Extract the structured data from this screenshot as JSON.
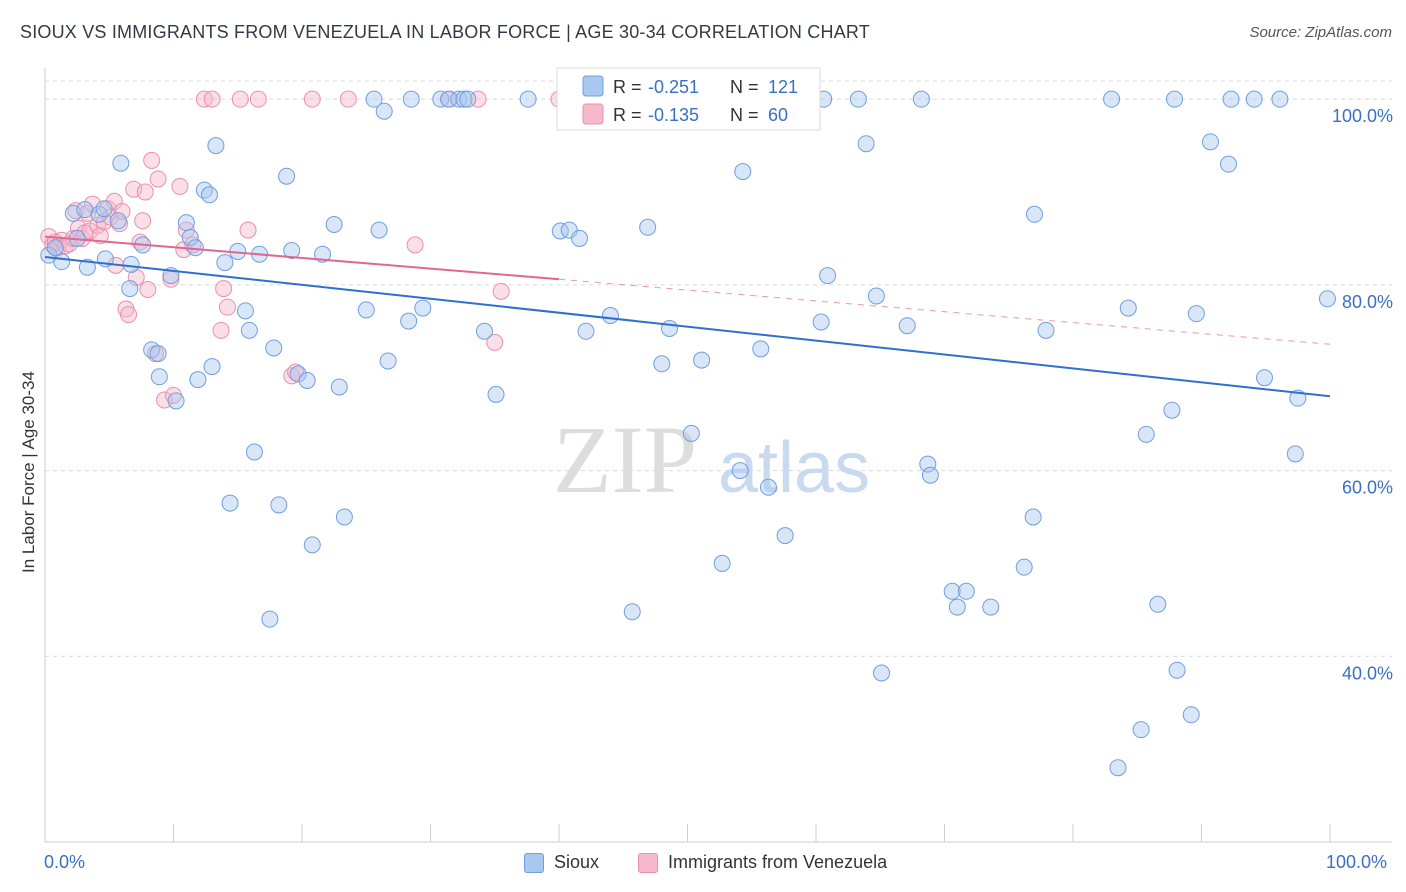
{
  "title": "SIOUX VS IMMIGRANTS FROM VENEZUELA IN LABOR FORCE | AGE 30-34 CORRELATION CHART",
  "source": "Source: ZipAtlas.com",
  "watermark": {
    "zip": "ZIP",
    "atlas": "atlas"
  },
  "colors": {
    "sioux_fill": "#a9c8f0",
    "sioux_stroke": "#6f9fe0",
    "sioux_line": "#2f6fcf",
    "venezuela_fill": "#f6b9cb",
    "venezuela_stroke": "#ec8fab",
    "venezuela_line": "#e06791",
    "tick_text": "#3a6fc4",
    "grid": "#d9d9d9"
  },
  "legend": {
    "rows": [
      {
        "r_label": "R =",
        "r_value": "-0.251",
        "n_label": "N =",
        "n_value": "121"
      },
      {
        "r_label": "R =",
        "r_value": "-0.135",
        "n_label": "N =",
        "n_value": "60"
      }
    ]
  },
  "bottom_legend": {
    "sioux": "Sioux",
    "venezuela": "Immigrants from Venezuela"
  },
  "chart_data": {
    "type": "scatter",
    "title": "SIOUX VS IMMIGRANTS FROM VENEZUELA IN LABOR FORCE | AGE 30-34 CORRELATION CHART",
    "xlabel": "",
    "ylabel": "In Labor Force | Age 30-34",
    "xlim": [
      0,
      100
    ],
    "ylim": [
      20,
      104
    ],
    "x_tick_labels": [
      "0.0%",
      "100.0%"
    ],
    "y_ticks": [
      40,
      60,
      80,
      100
    ],
    "y_tick_labels": [
      "40.0%",
      "60.0%",
      "80.0%",
      "100.0%"
    ],
    "grid": true,
    "legend_position": "top-center",
    "series": [
      {
        "name": "Sioux",
        "r": -0.251,
        "n": 121,
        "trend": {
          "x": [
            0,
            100
          ],
          "y": [
            83.0,
            68.0
          ]
        },
        "points": [
          [
            0.3,
            83.2
          ],
          [
            1.3,
            82.5
          ],
          [
            2.2,
            87.7
          ],
          [
            3.3,
            81.9
          ],
          [
            4.7,
            82.8
          ],
          [
            6.7,
            82.2
          ],
          [
            3.1,
            88.1
          ],
          [
            4.2,
            87.6
          ],
          [
            4.6,
            88.2
          ],
          [
            5.7,
            86.9
          ],
          [
            5.9,
            93.1
          ],
          [
            7.6,
            84.3
          ],
          [
            6.6,
            79.6
          ],
          [
            8.3,
            73.0
          ],
          [
            8.8,
            72.6
          ],
          [
            8.9,
            70.1
          ],
          [
            9.8,
            81.0
          ],
          [
            10.2,
            67.5
          ],
          [
            11.0,
            86.7
          ],
          [
            11.3,
            85.1
          ],
          [
            11.9,
            69.8
          ],
          [
            12.4,
            90.2
          ],
          [
            12.8,
            89.7
          ],
          [
            13.0,
            71.2
          ],
          [
            13.3,
            95.0
          ],
          [
            14.0,
            82.4
          ],
          [
            14.4,
            56.5
          ],
          [
            15.0,
            83.6
          ],
          [
            15.6,
            77.2
          ],
          [
            15.9,
            75.1
          ],
          [
            16.3,
            62.0
          ],
          [
            16.7,
            83.3
          ],
          [
            17.5,
            44.0
          ],
          [
            17.8,
            73.2
          ],
          [
            18.2,
            56.3
          ],
          [
            18.8,
            91.7
          ],
          [
            19.2,
            83.7
          ],
          [
            19.7,
            70.4
          ],
          [
            20.4,
            69.7
          ],
          [
            20.8,
            52.0
          ],
          [
            21.6,
            83.3
          ],
          [
            22.5,
            86.5
          ],
          [
            22.9,
            69.0
          ],
          [
            23.3,
            55.0
          ],
          [
            25.0,
            77.3
          ],
          [
            25.6,
            100.0
          ],
          [
            26.0,
            85.9
          ],
          [
            26.4,
            98.7
          ],
          [
            26.7,
            71.8
          ],
          [
            28.3,
            76.1
          ],
          [
            28.5,
            100.0
          ],
          [
            29.4,
            77.5
          ],
          [
            30.8,
            100.0
          ],
          [
            31.4,
            100.0
          ],
          [
            32.2,
            100.0
          ],
          [
            32.6,
            100.0
          ],
          [
            32.9,
            100.0
          ],
          [
            34.2,
            75.0
          ],
          [
            35.1,
            68.2
          ],
          [
            37.6,
            100.0
          ],
          [
            40.1,
            85.8
          ],
          [
            40.8,
            85.9
          ],
          [
            41.6,
            85.0
          ],
          [
            42.1,
            75.0
          ],
          [
            44.0,
            76.7
          ],
          [
            45.7,
            44.8
          ],
          [
            46.9,
            86.2
          ],
          [
            48.0,
            71.5
          ],
          [
            48.6,
            75.3
          ],
          [
            49.4,
            100.0
          ],
          [
            50.3,
            64.0
          ],
          [
            51.1,
            71.9
          ],
          [
            52.7,
            50.0
          ],
          [
            54.1,
            60.0
          ],
          [
            54.3,
            92.2
          ],
          [
            55.7,
            73.1
          ],
          [
            56.3,
            58.2
          ],
          [
            57.2,
            100.0
          ],
          [
            57.6,
            53.0
          ],
          [
            60.6,
            100.0
          ],
          [
            60.4,
            76.0
          ],
          [
            60.9,
            81.0
          ],
          [
            63.3,
            100.0
          ],
          [
            63.9,
            95.2
          ],
          [
            64.7,
            78.8
          ],
          [
            65.1,
            38.2
          ],
          [
            67.1,
            75.6
          ],
          [
            68.2,
            100.0
          ],
          [
            68.7,
            60.7
          ],
          [
            68.9,
            59.5
          ],
          [
            70.6,
            47.0
          ],
          [
            71.0,
            45.3
          ],
          [
            71.7,
            47.0
          ],
          [
            73.6,
            45.3
          ],
          [
            76.2,
            49.6
          ],
          [
            77.0,
            87.6
          ],
          [
            76.9,
            55.0
          ],
          [
            77.9,
            75.1
          ],
          [
            83.0,
            100.0
          ],
          [
            83.5,
            28.0
          ],
          [
            84.3,
            77.5
          ],
          [
            85.3,
            32.1
          ],
          [
            85.7,
            63.9
          ],
          [
            86.6,
            45.6
          ],
          [
            87.7,
            66.5
          ],
          [
            87.9,
            100.0
          ],
          [
            88.1,
            38.5
          ],
          [
            89.2,
            33.7
          ],
          [
            89.6,
            76.9
          ],
          [
            90.7,
            95.4
          ],
          [
            92.1,
            93.0
          ],
          [
            92.3,
            100.0
          ],
          [
            94.1,
            100.0
          ],
          [
            94.9,
            70.0
          ],
          [
            96.1,
            100.0
          ],
          [
            97.5,
            67.8
          ],
          [
            97.3,
            61.8
          ],
          [
            99.8,
            78.5
          ],
          [
            0.8,
            84.0
          ],
          [
            2.5,
            85.0
          ],
          [
            11.7,
            84.0
          ]
        ]
      },
      {
        "name": "Immigrants from Venezuela",
        "r": -0.135,
        "n": 60,
        "trend": {
          "x": [
            0,
            40
          ],
          "y": [
            85.2,
            80.6
          ]
        },
        "trend_extension": {
          "x": [
            40,
            100
          ],
          "y": [
            80.6,
            73.6
          ]
        },
        "points": [
          [
            0.3,
            85.2
          ],
          [
            0.6,
            84.3
          ],
          [
            0.8,
            84.6
          ],
          [
            1.0,
            84.0
          ],
          [
            1.3,
            84.8
          ],
          [
            1.6,
            84.2
          ],
          [
            1.9,
            84.4
          ],
          [
            2.2,
            85.0
          ],
          [
            2.4,
            88.0
          ],
          [
            2.6,
            86.1
          ],
          [
            2.9,
            85.0
          ],
          [
            3.1,
            85.6
          ],
          [
            3.3,
            87.7
          ],
          [
            3.5,
            85.8
          ],
          [
            3.7,
            88.7
          ],
          [
            4.1,
            86.4
          ],
          [
            4.3,
            85.3
          ],
          [
            4.6,
            86.8
          ],
          [
            4.9,
            88.2
          ],
          [
            5.1,
            87.3
          ],
          [
            5.4,
            89.0
          ],
          [
            5.5,
            82.1
          ],
          [
            5.8,
            86.6
          ],
          [
            6.0,
            87.9
          ],
          [
            6.3,
            77.4
          ],
          [
            6.5,
            76.8
          ],
          [
            6.9,
            90.3
          ],
          [
            7.1,
            80.8
          ],
          [
            7.4,
            84.6
          ],
          [
            7.6,
            86.9
          ],
          [
            7.8,
            90.0
          ],
          [
            8.0,
            79.5
          ],
          [
            8.3,
            93.4
          ],
          [
            8.6,
            72.6
          ],
          [
            8.8,
            91.4
          ],
          [
            9.3,
            67.6
          ],
          [
            9.8,
            80.6
          ],
          [
            10.0,
            68.1
          ],
          [
            10.5,
            90.6
          ],
          [
            10.8,
            83.8
          ],
          [
            11.0,
            85.9
          ],
          [
            11.5,
            84.3
          ],
          [
            12.4,
            100.0
          ],
          [
            13.0,
            100.0
          ],
          [
            13.7,
            75.1
          ],
          [
            13.9,
            79.6
          ],
          [
            14.2,
            77.6
          ],
          [
            15.2,
            100.0
          ],
          [
            15.8,
            85.9
          ],
          [
            16.6,
            100.0
          ],
          [
            19.2,
            70.2
          ],
          [
            19.5,
            70.6
          ],
          [
            20.8,
            100.0
          ],
          [
            23.6,
            100.0
          ],
          [
            28.8,
            84.3
          ],
          [
            31.5,
            100.0
          ],
          [
            33.7,
            100.0
          ],
          [
            35.0,
            73.8
          ],
          [
            35.5,
            79.3
          ],
          [
            40.0,
            100.0
          ]
        ]
      }
    ]
  }
}
